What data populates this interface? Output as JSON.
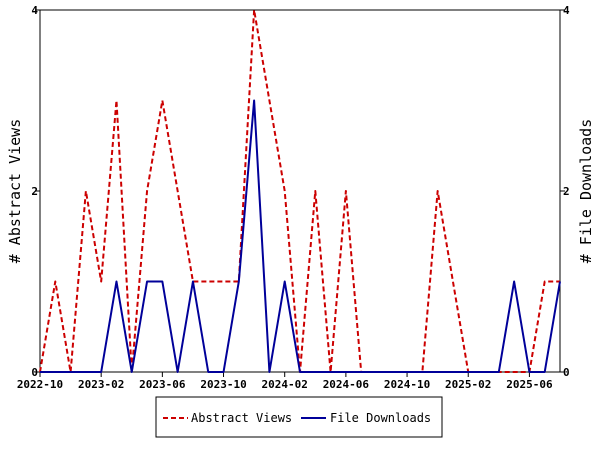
{
  "chart_data": {
    "type": "line",
    "title": "",
    "xlabel": "",
    "ylabel_left": "# Abstract Views",
    "ylabel_right": "# File Downloads",
    "ylim": [
      0,
      4
    ],
    "yticks": [
      0,
      2,
      4
    ],
    "x_tick_labels": [
      "2022-10",
      "2023-02",
      "2023-06",
      "2023-10",
      "2024-02",
      "2024-06",
      "2024-10",
      "2025-02",
      "2025-06"
    ],
    "x": [
      "2022-10",
      "2022-11",
      "2022-12",
      "2023-01",
      "2023-02",
      "2023-03",
      "2023-04",
      "2023-05",
      "2023-06",
      "2023-07",
      "2023-08",
      "2023-09",
      "2023-10",
      "2023-11",
      "2023-12",
      "2024-01",
      "2024-02",
      "2024-03",
      "2024-04",
      "2024-05",
      "2024-06",
      "2024-07",
      "2024-08",
      "2024-09",
      "2024-10",
      "2024-11",
      "2024-12",
      "2025-01",
      "2025-02",
      "2025-03",
      "2025-04",
      "2025-05",
      "2025-06",
      "2025-07",
      "2025-08"
    ],
    "series": [
      {
        "name": "Abstract Views",
        "color": "#cc0000",
        "style": "dashed",
        "values": [
          0,
          1,
          0,
          2,
          1,
          3,
          0,
          2,
          3,
          2,
          1,
          1,
          1,
          1,
          4,
          3,
          2,
          0,
          2,
          0,
          2,
          0,
          0,
          0,
          0,
          0,
          2,
          1,
          0,
          0,
          0,
          0,
          0,
          1,
          1
        ]
      },
      {
        "name": "File Downloads",
        "color": "#000099",
        "style": "solid",
        "values": [
          0,
          0,
          0,
          0,
          0,
          1,
          0,
          1,
          1,
          0,
          1,
          0,
          0,
          1,
          3,
          0,
          1,
          0,
          0,
          0,
          0,
          0,
          0,
          0,
          0,
          0,
          0,
          0,
          0,
          0,
          0,
          1,
          0,
          0,
          1
        ]
      }
    ],
    "grid": false,
    "legend_position": "bottom"
  }
}
